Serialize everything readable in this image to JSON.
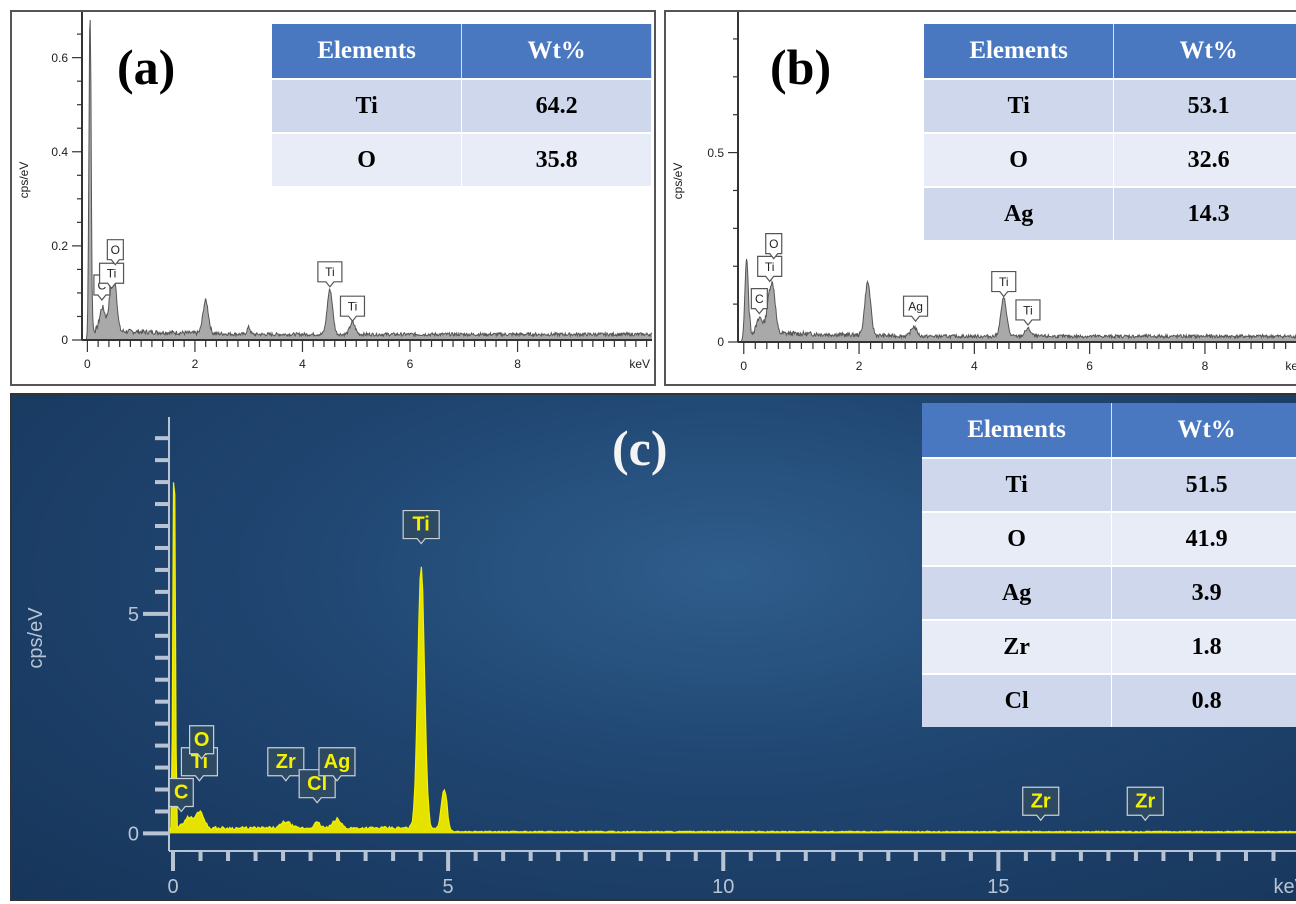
{
  "chart_data": [
    {
      "type": "line",
      "panel_label": "(a)",
      "ylabel": "cps/eV",
      "x_unit": "keV",
      "xlim": [
        -0.1,
        10.5
      ],
      "ylim": [
        0,
        0.68
      ],
      "x_ticks": [
        0,
        2,
        4,
        6,
        8
      ],
      "y_ticks": [
        0,
        0.2,
        0.4,
        0.6
      ],
      "y_tick_labels": [
        "0",
        "0.2",
        "0.4",
        "0.6"
      ],
      "peaks": [
        {
          "x": 0.05,
          "y": 0.72,
          "w": 0.02
        },
        {
          "x": 0.28,
          "y": 0.05,
          "w": 0.05
        },
        {
          "x": 0.45,
          "y": 0.09,
          "w": 0.05
        },
        {
          "x": 0.52,
          "y": 0.07,
          "w": 0.04
        },
        {
          "x": 2.2,
          "y": 0.07,
          "w": 0.05
        },
        {
          "x": 3.0,
          "y": 0.015,
          "w": 0.03
        },
        {
          "x": 4.51,
          "y": 0.095,
          "w": 0.05
        },
        {
          "x": 4.93,
          "y": 0.025,
          "w": 0.05
        }
      ],
      "peak_labels": [
        {
          "text": "C",
          "x": 0.27,
          "y": 0.085
        },
        {
          "text": "Ti",
          "x": 0.45,
          "y": 0.11
        },
        {
          "text": "O",
          "x": 0.52,
          "y": 0.16
        },
        {
          "text": "Ti",
          "x": 4.51,
          "y": 0.113
        },
        {
          "text": "Ti",
          "x": 4.93,
          "y": 0.04
        }
      ],
      "table": {
        "headers": [
          "Elements",
          "Wt%"
        ],
        "rows": [
          [
            "Ti",
            "64.2"
          ],
          [
            "O",
            "35.8"
          ]
        ]
      }
    },
    {
      "type": "line",
      "panel_label": "(b)",
      "ylabel": "cps/eV",
      "x_unit": "keV",
      "xlim": [
        -0.1,
        10.1
      ],
      "ylim": [
        0,
        0.85
      ],
      "x_ticks": [
        0,
        2,
        4,
        6,
        8
      ],
      "y_ticks": [
        0,
        0.5
      ],
      "y_tick_labels": [
        "0",
        "0.5"
      ],
      "peaks": [
        {
          "x": 0.05,
          "y": 0.22,
          "w": 0.03
        },
        {
          "x": 0.28,
          "y": 0.04,
          "w": 0.05
        },
        {
          "x": 0.45,
          "y": 0.1,
          "w": 0.05
        },
        {
          "x": 0.52,
          "y": 0.08,
          "w": 0.04
        },
        {
          "x": 2.15,
          "y": 0.14,
          "w": 0.05
        },
        {
          "x": 2.95,
          "y": 0.025,
          "w": 0.05
        },
        {
          "x": 4.51,
          "y": 0.1,
          "w": 0.05
        },
        {
          "x": 4.93,
          "y": 0.02,
          "w": 0.05
        }
      ],
      "peak_labels": [
        {
          "text": "C",
          "x": 0.27,
          "y": 0.075
        },
        {
          "text": "Ti",
          "x": 0.45,
          "y": 0.16
        },
        {
          "text": "O",
          "x": 0.52,
          "y": 0.22
        },
        {
          "text": "Ag",
          "x": 2.98,
          "y": 0.055
        },
        {
          "text": "Ti",
          "x": 4.51,
          "y": 0.12
        },
        {
          "text": "Ti",
          "x": 4.93,
          "y": 0.045
        }
      ],
      "table": {
        "headers": [
          "Elements",
          "Wt%"
        ],
        "rows": [
          [
            "Ti",
            "53.1"
          ],
          [
            "O",
            "32.6"
          ],
          [
            "Ag",
            "14.3"
          ]
        ]
      }
    },
    {
      "type": "line",
      "panel_label": "(c)",
      "ylabel": "cps/eV",
      "x_unit": "keV",
      "xlim": [
        -0.2,
        20.7
      ],
      "ylim": [
        -0.4,
        9.3
      ],
      "x_ticks": [
        0,
        5,
        10,
        15
      ],
      "y_ticks": [
        0,
        5
      ],
      "y_tick_labels": [
        "0",
        "5"
      ],
      "peaks": [
        {
          "x": 0.02,
          "y": 9.3,
          "w": 0.02
        },
        {
          "x": 0.28,
          "y": 0.25,
          "w": 0.08
        },
        {
          "x": 0.45,
          "y": 0.2,
          "w": 0.06
        },
        {
          "x": 0.52,
          "y": 0.25,
          "w": 0.06
        },
        {
          "x": 2.05,
          "y": 0.15,
          "w": 0.08
        },
        {
          "x": 2.62,
          "y": 0.12,
          "w": 0.06
        },
        {
          "x": 2.98,
          "y": 0.2,
          "w": 0.07
        },
        {
          "x": 4.51,
          "y": 6.0,
          "w": 0.06
        },
        {
          "x": 4.93,
          "y": 0.9,
          "w": 0.05
        }
      ],
      "peak_labels": [
        {
          "text": "C",
          "x": 0.15,
          "y": 0.5
        },
        {
          "text": "Ti",
          "x": 0.48,
          "y": 1.2
        },
        {
          "text": "O",
          "x": 0.52,
          "y": 1.7
        },
        {
          "text": "Zr",
          "x": 2.05,
          "y": 1.2
        },
        {
          "text": "Cl",
          "x": 2.62,
          "y": 0.7
        },
        {
          "text": "Ag",
          "x": 2.98,
          "y": 1.2
        },
        {
          "text": "Ti",
          "x": 4.51,
          "y": 6.6
        },
        {
          "text": "Zr",
          "x": 15.77,
          "y": 0.3
        },
        {
          "text": "Zr",
          "x": 17.67,
          "y": 0.3
        }
      ],
      "table": {
        "headers": [
          "Elements",
          "Wt%"
        ],
        "rows": [
          [
            "Ti",
            "51.5"
          ],
          [
            "O",
            "41.9"
          ],
          [
            "Ag",
            "3.9"
          ],
          [
            "Zr",
            "1.8"
          ],
          [
            "Cl",
            "0.8"
          ]
        ]
      }
    }
  ]
}
